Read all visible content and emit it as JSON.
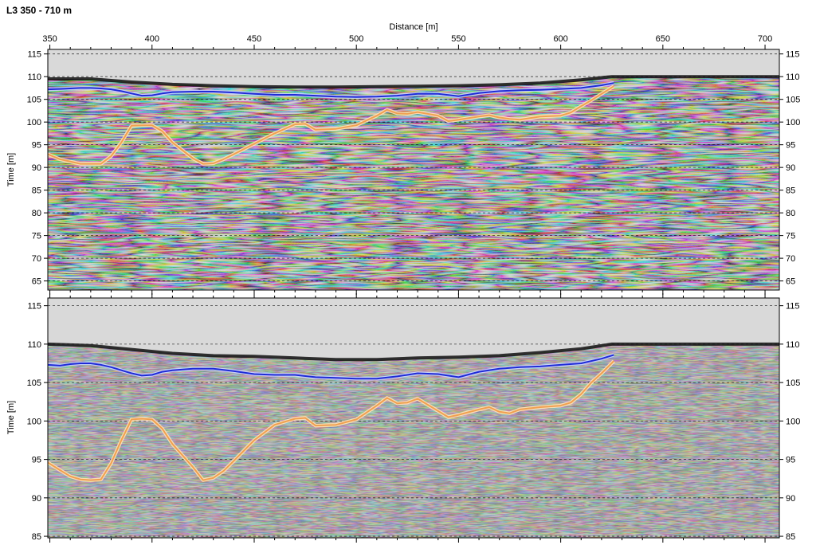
{
  "title": "L3 350 - 710 m",
  "chart_data": [
    {
      "type": "line",
      "panel": "upper",
      "title": "L3 350 - 710 m",
      "xlabel": "Distance [m]",
      "ylabel": "Time [m]",
      "xlim": [
        349,
        707
      ],
      "ylim": [
        63,
        116
      ],
      "x_ticks": [
        350,
        400,
        450,
        500,
        550,
        600,
        650,
        700
      ],
      "y_ticks": [
        65,
        70,
        75,
        80,
        85,
        90,
        95,
        100,
        105,
        110,
        115
      ],
      "grid": "dashed horizontal",
      "colors": {
        "blue_horizon": "#1f2bd6",
        "orange_horizon": "#f0a050",
        "no_data": "#d9d9d9"
      },
      "surface": {
        "x": [
          349,
          370,
          390,
          410,
          430,
          450,
          470,
          490,
          510,
          530,
          550,
          570,
          590,
          610,
          625,
          635,
          660,
          680,
          707
        ],
        "y": [
          109.5,
          109.5,
          108.8,
          108.3,
          108.0,
          107.8,
          107.7,
          107.7,
          107.8,
          107.9,
          108.0,
          108.2,
          108.6,
          109.3,
          110.0,
          110.0,
          110.0,
          110.0,
          110.0
        ]
      },
      "series": [
        {
          "x": [
            349,
            355,
            360,
            365,
            370,
            375,
            380,
            385,
            390,
            395,
            400,
            405,
            410,
            420,
            430,
            440,
            450,
            460,
            470,
            480,
            490,
            500,
            510,
            520,
            530,
            540,
            550,
            560,
            570,
            580,
            590,
            600,
            610,
            620,
            626
          ],
          "y": [
            107.2,
            107.3,
            107.4,
            107.5,
            107.5,
            107.4,
            107.2,
            106.8,
            106.3,
            105.8,
            105.9,
            106.3,
            106.6,
            106.7,
            106.7,
            106.5,
            106.2,
            106.0,
            106.0,
            105.8,
            105.6,
            105.5,
            105.6,
            105.8,
            106.2,
            106.2,
            105.7,
            106.4,
            106.8,
            107.0,
            107.1,
            107.3,
            107.5,
            108.1,
            108.6
          ]
        },
        {
          "x": [
            349,
            355,
            365,
            375,
            380,
            385,
            390,
            395,
            400,
            405,
            410,
            420,
            425,
            430,
            435,
            440,
            450,
            460,
            470,
            475,
            480,
            490,
            500,
            510,
            515,
            520,
            525,
            530,
            540,
            545,
            550,
            560,
            565,
            570,
            575,
            580,
            590,
            600,
            605,
            610,
            615,
            620,
            626
          ],
          "y": [
            92.9,
            91.8,
            90.8,
            90.8,
            92.5,
            95.5,
            99.2,
            99.3,
            99.3,
            98.0,
            95.5,
            92.0,
            90.8,
            90.9,
            91.8,
            92.9,
            95.2,
            97.5,
            99.5,
            99.6,
            98.3,
            98.5,
            99.3,
            101.4,
            102.7,
            101.9,
            101.8,
            102.2,
            101.4,
            100.2,
            100.5,
            101.2,
            101.5,
            101.0,
            100.7,
            100.5,
            101.2,
            101.4,
            102.1,
            103.5,
            104.8,
            106.2,
            107.9
          ]
        }
      ]
    },
    {
      "type": "line",
      "panel": "lower",
      "xlabel": "",
      "ylabel": "Time [m]",
      "xlim": [
        349,
        707
      ],
      "ylim": [
        84.8,
        116
      ],
      "y_ticks": [
        85,
        90,
        95,
        100,
        105,
        110,
        115
      ],
      "grid": "dashed horizontal",
      "surface": {
        "x": [
          349,
          370,
          390,
          410,
          430,
          450,
          470,
          490,
          510,
          530,
          550,
          570,
          590,
          610,
          625,
          635,
          660,
          680,
          707
        ],
        "y": [
          110.0,
          109.8,
          109.3,
          108.8,
          108.5,
          108.4,
          108.2,
          108.0,
          108.0,
          108.2,
          108.3,
          108.5,
          108.9,
          109.4,
          110.0,
          110.0,
          110.0,
          110.0,
          110.0
        ]
      },
      "series": [
        {
          "x": [
            349,
            355,
            360,
            365,
            370,
            375,
            380,
            385,
            390,
            395,
            400,
            405,
            410,
            420,
            430,
            440,
            450,
            460,
            470,
            480,
            490,
            500,
            510,
            520,
            530,
            540,
            550,
            560,
            570,
            580,
            590,
            600,
            610,
            620,
            626
          ],
          "y": [
            107.3,
            107.2,
            107.4,
            107.5,
            107.5,
            107.3,
            107.0,
            106.6,
            106.2,
            105.9,
            106.0,
            106.4,
            106.6,
            106.8,
            106.8,
            106.5,
            106.1,
            106.0,
            106.0,
            105.7,
            105.6,
            105.5,
            105.5,
            105.8,
            106.2,
            106.1,
            105.7,
            106.4,
            106.8,
            107.0,
            107.1,
            107.3,
            107.5,
            108.1,
            108.6
          ]
        },
        {
          "x": [
            349,
            355,
            360,
            365,
            370,
            375,
            380,
            385,
            390,
            395,
            400,
            405,
            410,
            420,
            425,
            430,
            435,
            440,
            450,
            460,
            470,
            475,
            480,
            490,
            500,
            510,
            515,
            520,
            525,
            530,
            540,
            545,
            550,
            560,
            565,
            570,
            575,
            580,
            590,
            600,
            605,
            610,
            615,
            620,
            626
          ],
          "y": [
            94.6,
            93.6,
            92.8,
            92.4,
            92.3,
            92.4,
            94.5,
            97.5,
            100.2,
            100.3,
            100.2,
            99.0,
            97.0,
            94.0,
            92.3,
            92.6,
            93.5,
            94.8,
            97.5,
            99.5,
            100.3,
            100.4,
            99.4,
            99.5,
            100.2,
            102.0,
            103.0,
            102.3,
            102.4,
            102.9,
            101.3,
            100.5,
            100.8,
            101.5,
            101.8,
            101.2,
            101.0,
            101.5,
            101.8,
            102.0,
            102.4,
            103.5,
            105.0,
            106.2,
            107.8
          ]
        }
      ]
    }
  ]
}
